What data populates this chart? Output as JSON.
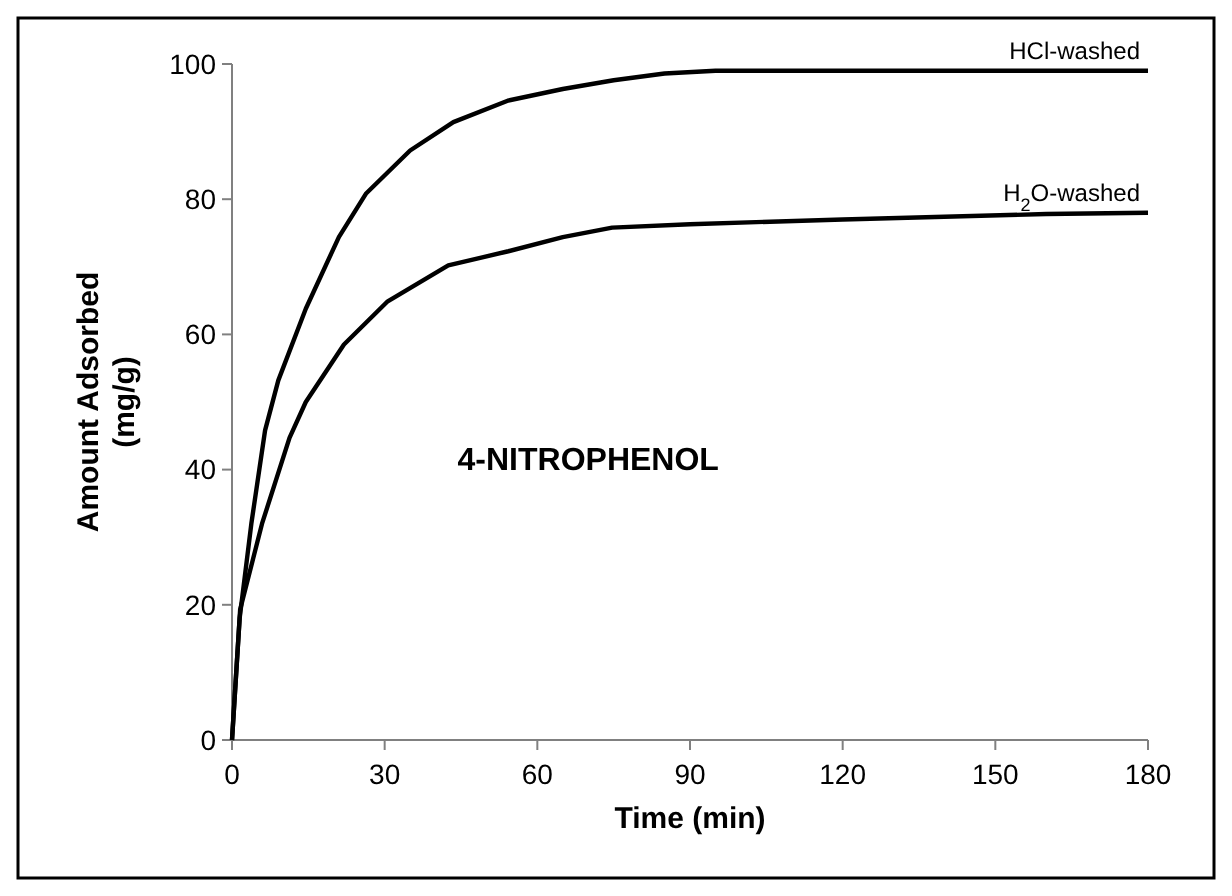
{
  "chart_data": {
    "type": "line",
    "xlabel": "Time (min)",
    "ylabel": "Amount Adsorbed\n(mg/g)",
    "annotations": [
      "4-NITROPHENOL"
    ],
    "xlim": [
      0,
      180
    ],
    "ylim": [
      0,
      100
    ],
    "xticks": [
      0,
      30,
      60,
      90,
      120,
      150,
      180
    ],
    "yticks": [
      0,
      20,
      40,
      60,
      80,
      100
    ],
    "grid": false,
    "marker": "none",
    "line_style": "solid",
    "series": [
      {
        "name": "HCl-washed",
        "color": "#000000",
        "x": [
          0,
          1.5,
          3.8,
          6.5,
          9.1,
          14.5,
          21,
          26.3,
          35,
          43.5,
          54.3,
          65,
          75,
          85,
          95,
          120,
          150,
          180
        ],
        "values": [
          0,
          18,
          32,
          45.8,
          53.2,
          63.8,
          74.4,
          80.8,
          87.2,
          91.4,
          94.6,
          96.3,
          97.6,
          98.6,
          99,
          99,
          99,
          99
        ]
      },
      {
        "name": "H$_{2}$O-washed",
        "color": "#000000",
        "x": [
          0,
          1.6,
          5.9,
          11.3,
          14.5,
          22,
          30.6,
          42.5,
          54.3,
          65,
          74.7,
          90,
          120,
          160,
          180
        ],
        "values": [
          0,
          19.3,
          32,
          44.7,
          50,
          58.5,
          64.9,
          70.2,
          72.3,
          74.4,
          75.8,
          76.3,
          77,
          77.8,
          78
        ]
      }
    ]
  }
}
